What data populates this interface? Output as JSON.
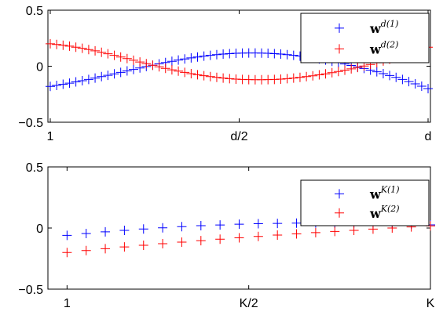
{
  "chart_data": [
    {
      "type": "scatter",
      "title": "",
      "xlabel": "",
      "ylabel": "",
      "x_range": [
        1,
        60
      ],
      "ylim": [
        -0.5,
        0.5
      ],
      "x_ticks": [
        {
          "value": 1,
          "label": "1"
        },
        {
          "value": 30.5,
          "label": "d/2"
        },
        {
          "value": 60,
          "label": "d"
        }
      ],
      "y_ticks": [
        {
          "value": 0.5,
          "label": "0.5"
        },
        {
          "value": 0,
          "label": "0"
        },
        {
          "value": -0.5,
          "label": "−0.5"
        }
      ],
      "grid": false,
      "legend_position": "top-right",
      "marker": "+",
      "series": [
        {
          "name": "w^{d(1)}",
          "legend_base": "w",
          "legend_sup": "d(1)",
          "color": "#0000ff",
          "x": [
            1,
            2,
            3,
            4,
            5,
            6,
            7,
            8,
            9,
            10,
            11,
            12,
            13,
            14,
            15,
            16,
            17,
            18,
            19,
            20,
            21,
            22,
            23,
            24,
            25,
            26,
            27,
            28,
            29,
            30,
            31,
            32,
            33,
            34,
            35,
            36,
            37,
            38,
            39,
            40,
            41,
            42,
            43,
            44,
            45,
            46,
            47,
            48,
            49,
            50,
            51,
            52,
            53,
            54,
            55,
            56,
            57,
            58,
            59,
            60
          ],
          "values": [
            -0.18,
            -0.171,
            -0.161,
            -0.151,
            -0.14,
            -0.129,
            -0.118,
            -0.106,
            -0.093,
            -0.081,
            -0.068,
            -0.055,
            -0.042,
            -0.029,
            -0.016,
            -0.003,
            0.009,
            0.021,
            0.033,
            0.044,
            0.055,
            0.065,
            0.074,
            0.082,
            0.09,
            0.097,
            0.103,
            0.108,
            0.112,
            0.115,
            0.117,
            0.118,
            0.118,
            0.117,
            0.115,
            0.112,
            0.108,
            0.103,
            0.097,
            0.09,
            0.083,
            0.074,
            0.065,
            0.055,
            0.044,
            0.032,
            0.02,
            0.007,
            -0.006,
            -0.02,
            -0.035,
            -0.05,
            -0.066,
            -0.083,
            -0.1,
            -0.118,
            -0.137,
            -0.157,
            -0.178,
            -0.2
          ]
        },
        {
          "name": "w^{d(2)}",
          "legend_base": "w",
          "legend_sup": "d(2)",
          "color": "#ff0000",
          "x": [
            1,
            2,
            3,
            4,
            5,
            6,
            7,
            8,
            9,
            10,
            11,
            12,
            13,
            14,
            15,
            16,
            17,
            18,
            19,
            20,
            21,
            22,
            23,
            24,
            25,
            26,
            27,
            28,
            29,
            30,
            31,
            32,
            33,
            34,
            35,
            36,
            37,
            38,
            39,
            40,
            41,
            42,
            43,
            44,
            45,
            46,
            47,
            48,
            49,
            50,
            51,
            52,
            53,
            54,
            55,
            56,
            57,
            58,
            59,
            60
          ],
          "values": [
            0.2,
            0.194,
            0.187,
            0.179,
            0.17,
            0.16,
            0.149,
            0.137,
            0.124,
            0.111,
            0.097,
            0.082,
            0.068,
            0.053,
            0.038,
            0.023,
            0.009,
            -0.005,
            -0.019,
            -0.032,
            -0.044,
            -0.055,
            -0.066,
            -0.076,
            -0.085,
            -0.093,
            -0.1,
            -0.106,
            -0.111,
            -0.115,
            -0.118,
            -0.12,
            -0.121,
            -0.121,
            -0.12,
            -0.118,
            -0.115,
            -0.111,
            -0.106,
            -0.1,
            -0.093,
            -0.086,
            -0.077,
            -0.068,
            -0.058,
            -0.047,
            -0.036,
            -0.024,
            -0.011,
            0.002,
            0.016,
            0.031,
            0.046,
            0.062,
            0.078,
            0.095,
            0.113,
            0.131,
            0.15,
            0.17
          ]
        }
      ]
    },
    {
      "type": "scatter",
      "title": "",
      "xlabel": "",
      "ylabel": "",
      "x_range": [
        0,
        20
      ],
      "ylim": [
        -0.5,
        0.5
      ],
      "x_ticks": [
        {
          "value": 1,
          "label": "1"
        },
        {
          "value": 10.5,
          "label": "K/2"
        },
        {
          "value": 20,
          "label": "K"
        }
      ],
      "y_ticks": [
        {
          "value": 0.5,
          "label": "0.5"
        },
        {
          "value": 0,
          "label": "0"
        },
        {
          "value": -0.5,
          "label": "−0.5"
        }
      ],
      "grid": false,
      "legend_position": "top-right",
      "marker": "+",
      "series": [
        {
          "name": "w^{K(1)}",
          "legend_base": "w",
          "legend_sup": "K(1)",
          "color": "#0000ff",
          "x": [
            1,
            2,
            3,
            4,
            5,
            6,
            7,
            8,
            9,
            10,
            11,
            12,
            13,
            14,
            15,
            16,
            17,
            18,
            19,
            20
          ],
          "values": [
            -0.06,
            -0.045,
            -0.031,
            -0.019,
            -0.008,
            0.002,
            0.011,
            0.019,
            0.025,
            0.031,
            0.035,
            0.038,
            0.04,
            0.041,
            0.041,
            0.04,
            0.038,
            0.035,
            0.031,
            0.026
          ]
        },
        {
          "name": "w^{K(2)}",
          "legend_base": "w",
          "legend_sup": "K(2)",
          "color": "#ff0000",
          "x": [
            1,
            2,
            3,
            4,
            5,
            6,
            7,
            8,
            9,
            10,
            11,
            12,
            13,
            14,
            15,
            16,
            17,
            18,
            19,
            20
          ],
          "values": [
            -0.2,
            -0.184,
            -0.169,
            -0.155,
            -0.141,
            -0.128,
            -0.115,
            -0.103,
            -0.091,
            -0.08,
            -0.069,
            -0.058,
            -0.048,
            -0.038,
            -0.028,
            -0.019,
            -0.009,
            0.0,
            0.009,
            0.018
          ]
        }
      ]
    }
  ]
}
